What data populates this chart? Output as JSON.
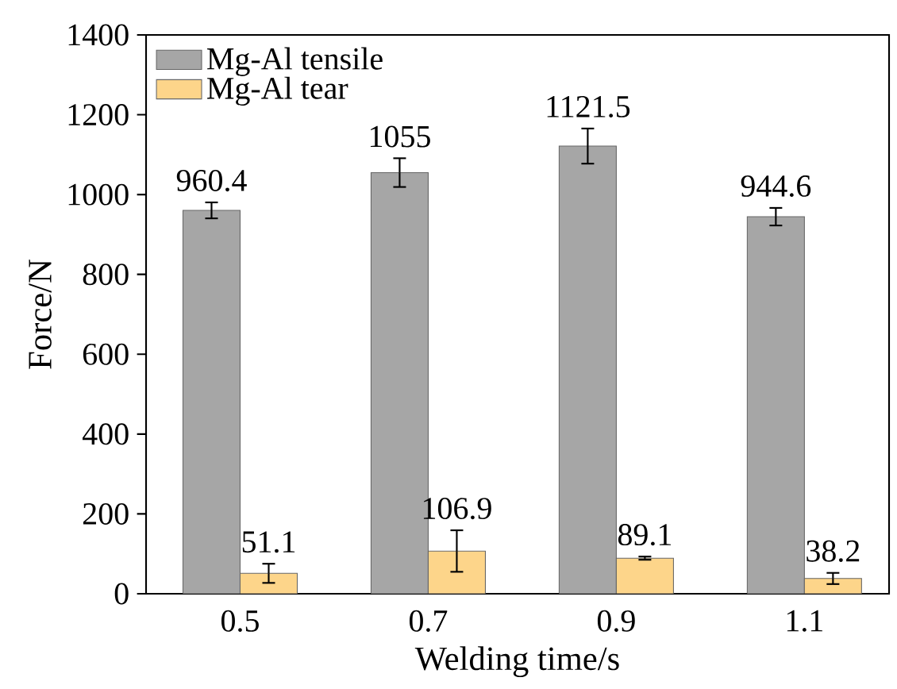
{
  "chart_data": {
    "type": "bar",
    "xlabel": "Welding time/s",
    "ylabel": "Force/N",
    "categories": [
      "0.5",
      "0.7",
      "0.9",
      "1.1"
    ],
    "series": [
      {
        "name": "Mg-Al tensile",
        "color": "#a6a6a6",
        "values": [
          960.4,
          1055,
          1121.5,
          944.6
        ],
        "errors": [
          20,
          36,
          44,
          22
        ]
      },
      {
        "name": "Mg-Al tear",
        "color": "#fdd58a",
        "values": [
          51.1,
          106.9,
          89.1,
          38.2
        ],
        "errors": [
          24,
          52,
          4,
          14
        ]
      }
    ],
    "ylim": [
      0,
      1400
    ],
    "yticks": [
      0,
      200,
      400,
      600,
      800,
      1000,
      1200,
      1400
    ],
    "data_labels": true,
    "legend": "top left",
    "grid": false
  }
}
